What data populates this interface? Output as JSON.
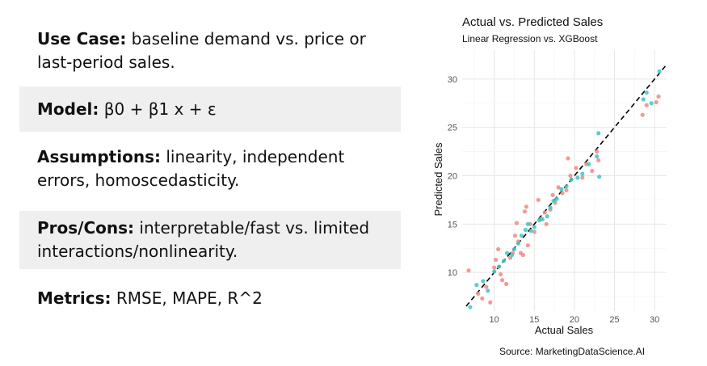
{
  "slide": {
    "rows": [
      {
        "label": "Use Case:",
        "text": "baseline demand vs. price or last-period sales.",
        "shaded": false
      },
      {
        "label": "Model:",
        "text": "β0 + β1 x + ε",
        "shaded": true
      },
      {
        "label": "Assumptions:",
        "text": "linearity, independent errors, homoscedasticity.",
        "shaded": false
      },
      {
        "label": "Pros/Cons:",
        "text": "interpretable/fast vs. limited interactions/nonlinearity.",
        "shaded": true
      },
      {
        "label": "Metrics:",
        "text": "RMSE, MAPE, R^2",
        "shaded": false
      }
    ]
  },
  "source": "Source: MarketingDataScience.AI",
  "colors": {
    "series1": "#f08a84",
    "series2": "#3fc4c6",
    "grid": "#e6e6e6",
    "reference_line": "#000000"
  },
  "chart_data": {
    "type": "scatter",
    "title": "Actual vs. Predicted Sales",
    "subtitle": "Linear Regression vs. XGBoost",
    "xlabel": "Actual Sales",
    "ylabel": "Predicted Sales",
    "xlim": [
      6,
      31.5
    ],
    "ylim": [
      6,
      33
    ],
    "xticks": [
      10,
      15,
      20,
      25,
      30
    ],
    "yticks": [
      10,
      15,
      20,
      25,
      30
    ],
    "grid": true,
    "legend": "none",
    "reference_line": "y = x (dashed)",
    "series": [
      {
        "color": "#f08a84",
        "points": [
          [
            6.8,
            10.2
          ],
          [
            8.0,
            7.8
          ],
          [
            8.5,
            7.3
          ],
          [
            9.0,
            8.5
          ],
          [
            9.5,
            6.9
          ],
          [
            10.0,
            10.5
          ],
          [
            10.2,
            11.3
          ],
          [
            10.5,
            12.4
          ],
          [
            10.8,
            9.8
          ],
          [
            11.0,
            9.2
          ],
          [
            11.5,
            8.8
          ],
          [
            12.0,
            11.5
          ],
          [
            12.3,
            12.0
          ],
          [
            12.6,
            13.8
          ],
          [
            12.8,
            15.1
          ],
          [
            13.0,
            13.2
          ],
          [
            13.3,
            12.0
          ],
          [
            13.6,
            11.8
          ],
          [
            13.8,
            16.3
          ],
          [
            14.0,
            16.8
          ],
          [
            14.2,
            12.8
          ],
          [
            14.5,
            15.0
          ],
          [
            15.0,
            14.2
          ],
          [
            15.5,
            17.5
          ],
          [
            15.8,
            15.5
          ],
          [
            16.3,
            16.2
          ],
          [
            16.5,
            15.0
          ],
          [
            17.0,
            16.5
          ],
          [
            17.3,
            18.0
          ],
          [
            17.6,
            17.2
          ],
          [
            18.0,
            18.8
          ],
          [
            18.5,
            18.2
          ],
          [
            19.0,
            18.5
          ],
          [
            19.2,
            21.8
          ],
          [
            19.5,
            20.0
          ],
          [
            20.2,
            20.8
          ],
          [
            21.0,
            19.8
          ],
          [
            21.5,
            21.2
          ],
          [
            22.2,
            20.5
          ],
          [
            22.8,
            22.5
          ],
          [
            23.0,
            21.6
          ],
          [
            28.5,
            26.3
          ],
          [
            29.0,
            27.3
          ],
          [
            30.2,
            27.6
          ],
          [
            30.5,
            28.2
          ]
        ]
      },
      {
        "color": "#3fc4c6",
        "points": [
          [
            7.0,
            6.4
          ],
          [
            7.8,
            8.7
          ],
          [
            8.6,
            9.1
          ],
          [
            9.2,
            8.1
          ],
          [
            10.0,
            10.1
          ],
          [
            10.6,
            10.6
          ],
          [
            11.2,
            11.2
          ],
          [
            11.6,
            12.0
          ],
          [
            12.2,
            11.8
          ],
          [
            12.5,
            12.4
          ],
          [
            13.0,
            13.0
          ],
          [
            13.4,
            13.8
          ],
          [
            13.9,
            14.4
          ],
          [
            14.2,
            15.0
          ],
          [
            14.6,
            14.3
          ],
          [
            15.0,
            14.7
          ],
          [
            15.6,
            15.4
          ],
          [
            16.0,
            15.5
          ],
          [
            16.6,
            15.8
          ],
          [
            17.0,
            16.7
          ],
          [
            17.4,
            17.4
          ],
          [
            17.8,
            17.6
          ],
          [
            18.4,
            18.6
          ],
          [
            19.0,
            18.9
          ],
          [
            19.6,
            19.6
          ],
          [
            20.4,
            19.8
          ],
          [
            21.0,
            20.2
          ],
          [
            21.8,
            21.2
          ],
          [
            22.8,
            22.0
          ],
          [
            23.0,
            24.4
          ],
          [
            23.1,
            19.9
          ],
          [
            28.6,
            27.9
          ],
          [
            29.0,
            28.6
          ],
          [
            29.6,
            27.5
          ],
          [
            30.6,
            30.8
          ]
        ]
      }
    ]
  }
}
